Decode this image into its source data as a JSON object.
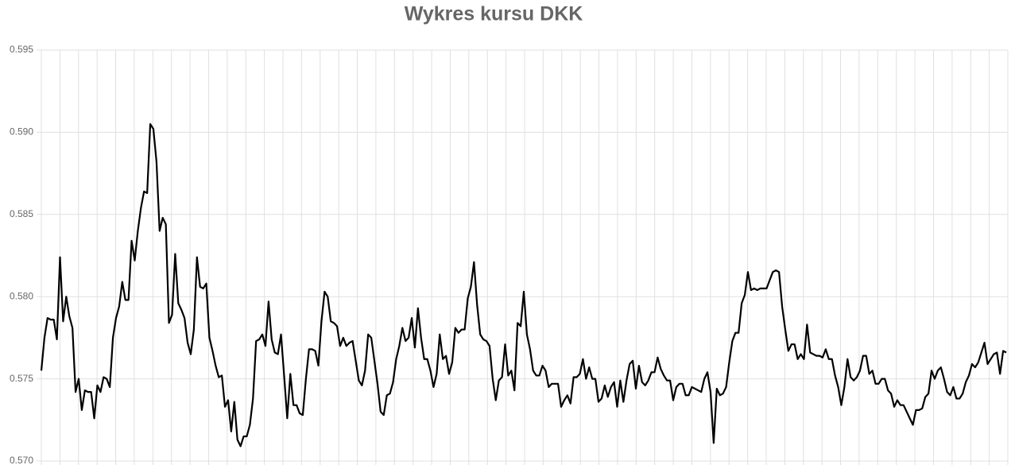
{
  "chart_data": {
    "type": "line",
    "title": "Wykres kursu DKK",
    "ylim": [
      0.57,
      0.595
    ],
    "yticks": [
      {
        "value": 0.57,
        "label": "0.570"
      },
      0.575,
      {
        "value": 0.58,
        "label": "0.580"
      },
      0.585,
      {
        "value": 0.59,
        "label": "0.590"
      },
      0.595
    ],
    "grid": true,
    "color": "#000000",
    "values": [
      0.5755,
      0.5775,
      0.5787,
      0.5786,
      0.5786,
      0.5774,
      0.5824,
      0.5785,
      0.58,
      0.5788,
      0.5781,
      0.5742,
      0.575,
      0.5731,
      0.5743,
      0.5742,
      0.5742,
      0.5726,
      0.5746,
      0.5742,
      0.5751,
      0.575,
      0.5745,
      0.5775,
      0.5787,
      0.5794,
      0.5809,
      0.5798,
      0.5798,
      0.5834,
      0.5822,
      0.584,
      0.5854,
      0.5864,
      0.5863,
      0.5905,
      0.5902,
      0.5882,
      0.584,
      0.5848,
      0.5844,
      0.5784,
      0.5789,
      0.5826,
      0.5796,
      0.5792,
      0.5787,
      0.5772,
      0.5765,
      0.578,
      0.5824,
      0.5806,
      0.5805,
      0.5808,
      0.5775,
      0.5767,
      0.5758,
      0.5751,
      0.5752,
      0.5733,
      0.5737,
      0.5718,
      0.5736,
      0.5713,
      0.5709,
      0.5715,
      0.5715,
      0.5722,
      0.5738,
      0.5773,
      0.5774,
      0.5777,
      0.577,
      0.5797,
      0.5774,
      0.5766,
      0.5765,
      0.5777,
      0.5752,
      0.5726,
      0.5753,
      0.5734,
      0.5734,
      0.5729,
      0.5728,
      0.575,
      0.5768,
      0.5768,
      0.5767,
      0.5758,
      0.5785,
      0.5803,
      0.58,
      0.5785,
      0.5784,
      0.5782,
      0.577,
      0.5775,
      0.577,
      0.5772,
      0.5773,
      0.5761,
      0.5749,
      0.5746,
      0.5755,
      0.5777,
      0.5775,
      0.5761,
      0.5747,
      0.573,
      0.5728,
      0.574,
      0.5741,
      0.5748,
      0.5762,
      0.577,
      0.5781,
      0.5773,
      0.5775,
      0.5787,
      0.5769,
      0.5793,
      0.5775,
      0.5762,
      0.5762,
      0.5755,
      0.5745,
      0.5753,
      0.5777,
      0.5762,
      0.5764,
      0.5753,
      0.576,
      0.5781,
      0.5778,
      0.578,
      0.578,
      0.5799,
      0.5806,
      0.5821,
      0.5795,
      0.5777,
      0.5774,
      0.5773,
      0.577,
      0.575,
      0.5737,
      0.5749,
      0.5751,
      0.5771,
      0.5752,
      0.5755,
      0.5743,
      0.5784,
      0.5782,
      0.5803,
      0.5777,
      0.5768,
      0.5755,
      0.5752,
      0.5752,
      0.5758,
      0.5755,
      0.5745,
      0.5747,
      0.5747,
      0.5747,
      0.5733,
      0.5737,
      0.574,
      0.5735,
      0.5751,
      0.5751,
      0.5753,
      0.5762,
      0.575,
      0.5757,
      0.575,
      0.575,
      0.5736,
      0.5738,
      0.5746,
      0.5739,
      0.5745,
      0.5748,
      0.5733,
      0.5749,
      0.5736,
      0.5749,
      0.5759,
      0.5761,
      0.5744,
      0.5758,
      0.5748,
      0.5746,
      0.5749,
      0.5754,
      0.5754,
      0.5763,
      0.5756,
      0.5752,
      0.5749,
      0.5749,
      0.5737,
      0.5745,
      0.5747,
      0.5747,
      0.574,
      0.574,
      0.5745,
      0.5744,
      0.5743,
      0.5742,
      0.575,
      0.5754,
      0.5742,
      0.5711,
      0.5744,
      0.574,
      0.5741,
      0.5745,
      0.576,
      0.5773,
      0.5778,
      0.5778,
      0.5796,
      0.5801,
      0.5815,
      0.5804,
      0.5805,
      0.5804,
      0.5805,
      0.5805,
      0.5805,
      0.581,
      0.5815,
      0.5816,
      0.5815,
      0.5794,
      0.578,
      0.5767,
      0.5771,
      0.5771,
      0.5762,
      0.5765,
      0.5762,
      0.5783,
      0.5766,
      0.5765,
      0.5764,
      0.5764,
      0.5763,
      0.5768,
      0.5762,
      0.5762,
      0.5752,
      0.5745,
      0.5734,
      0.5745,
      0.5762,
      0.5751,
      0.5749,
      0.5751,
      0.5755,
      0.5764,
      0.5764,
      0.5753,
      0.5755,
      0.5747,
      0.5747,
      0.575,
      0.575,
      0.5743,
      0.5741,
      0.5733,
      0.5737,
      0.5734,
      0.5734,
      0.573,
      0.5726,
      0.5722,
      0.5731,
      0.5731,
      0.5732,
      0.5739,
      0.5741,
      0.5755,
      0.575,
      0.5755,
      0.5757,
      0.575,
      0.5742,
      0.574,
      0.5745,
      0.5738,
      0.5738,
      0.5741,
      0.5748,
      0.5752,
      0.5759,
      0.5757,
      0.576,
      0.5766,
      0.5772,
      0.5759,
      0.5762,
      0.5765,
      0.5766,
      0.5753,
      0.5767,
      0.5766
    ]
  }
}
